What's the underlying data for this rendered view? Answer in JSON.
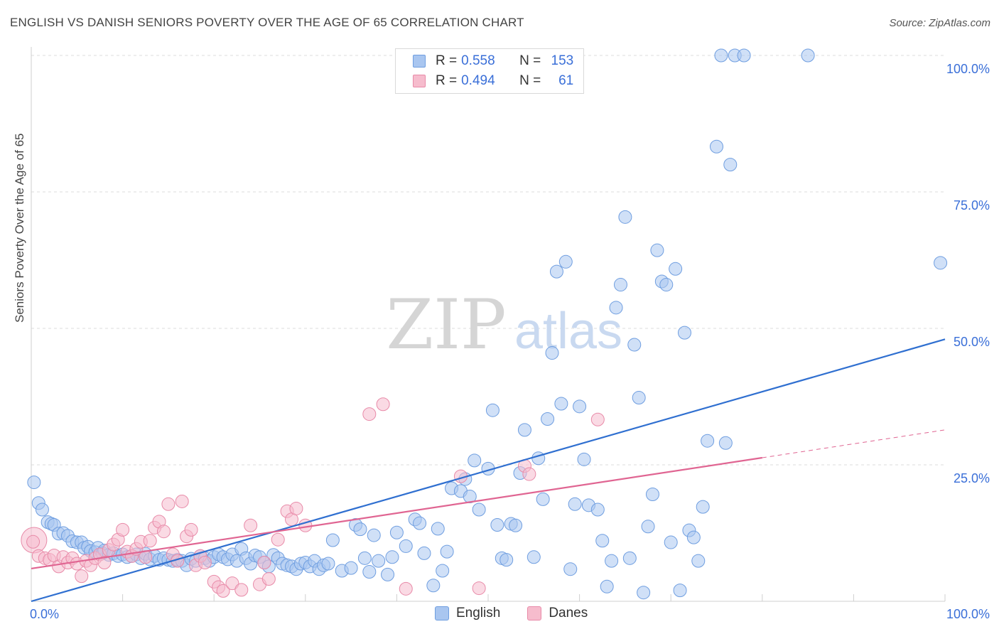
{
  "title": "ENGLISH VS DANISH SENIORS POVERTY OVER THE AGE OF 65 CORRELATION CHART",
  "source": "Source: ZipAtlas.com",
  "watermark": {
    "zip": "ZIP",
    "atlas": "atlas"
  },
  "colors": {
    "english_fill": "#a9c6f0",
    "english_stroke": "#6f9ee0",
    "english_line": "#2f6fd0",
    "danes_fill": "#f6bccd",
    "danes_stroke": "#e88aa8",
    "danes_line": "#e06592",
    "tick_text": "#3a6fd8",
    "grid": "#dcdcdc"
  },
  "legend_top": {
    "english": {
      "r_label": "R =",
      "r_value": "0.558",
      "n_label": "N =",
      "n_value": "153"
    },
    "danes": {
      "r_label": "R =",
      "r_value": "0.494",
      "n_label": "N =",
      "n_value": "61"
    }
  },
  "chart_data": {
    "type": "scatter",
    "title": "ENGLISH VS DANISH SENIORS POVERTY OVER THE AGE OF 65 CORRELATION CHART",
    "xlabel": "",
    "ylabel": "Seniors Poverty Over the Age of 65",
    "xlim": [
      0,
      100
    ],
    "ylim": [
      0,
      100
    ],
    "x_tick_labels": [
      "0.0%",
      "100.0%"
    ],
    "y_tick_labels": [
      "25.0%",
      "50.0%",
      "75.0%",
      "100.0%"
    ],
    "y_ticks": [
      25,
      50,
      75,
      100
    ],
    "grid": true,
    "legend": "top-center",
    "series": [
      {
        "name": "English",
        "trendline": {
          "x": [
            0,
            100
          ],
          "y": [
            0,
            48
          ]
        },
        "points": [
          [
            0.3,
            21.8
          ],
          [
            0.8,
            18
          ],
          [
            1.2,
            16.8
          ],
          [
            1.8,
            14.5
          ],
          [
            2.2,
            14.2
          ],
          [
            2.5,
            14
          ],
          [
            3,
            12.4
          ],
          [
            3.5,
            12.5
          ],
          [
            4,
            12
          ],
          [
            4.5,
            11
          ],
          [
            5,
            10.8
          ],
          [
            5.5,
            10.8
          ],
          [
            5.8,
            9.8
          ],
          [
            6.2,
            10
          ],
          [
            6.5,
            9.2
          ],
          [
            7,
            9
          ],
          [
            7.3,
            9.8
          ],
          [
            7.8,
            8.8
          ],
          [
            8,
            9.3
          ],
          [
            8.5,
            8.5
          ],
          [
            9,
            8.8
          ],
          [
            9.5,
            8.3
          ],
          [
            10,
            8.6
          ],
          [
            10.5,
            8.1
          ],
          [
            11,
            8.3
          ],
          [
            11.5,
            8.6
          ],
          [
            12,
            7.9
          ],
          [
            12.5,
            8.7
          ],
          [
            13,
            7.7
          ],
          [
            13.5,
            8.3
          ],
          [
            14,
            7.6
          ],
          [
            14.5,
            7.9
          ],
          [
            15,
            7.6
          ],
          [
            15.5,
            7.4
          ],
          [
            16,
            7.6
          ],
          [
            16.5,
            7.4
          ],
          [
            17,
            6.6
          ],
          [
            17.5,
            7.8
          ],
          [
            18,
            7.4
          ],
          [
            18.5,
            8.3
          ],
          [
            19,
            7.9
          ],
          [
            19.5,
            7.4
          ],
          [
            20,
            8.1
          ],
          [
            20.5,
            8.6
          ],
          [
            21,
            8.1
          ],
          [
            21.5,
            7.7
          ],
          [
            22,
            8.6
          ],
          [
            22.5,
            7.4
          ],
          [
            23,
            9.6
          ],
          [
            23.5,
            7.9
          ],
          [
            24,
            6.9
          ],
          [
            24.5,
            8.4
          ],
          [
            25,
            8.1
          ],
          [
            25.5,
            7.1
          ],
          [
            26,
            6.4
          ],
          [
            26.5,
            8.5
          ],
          [
            27,
            7.9
          ],
          [
            27.5,
            6.9
          ],
          [
            28,
            6.6
          ],
          [
            28.5,
            6.4
          ],
          [
            29,
            5.9
          ],
          [
            29.5,
            6.9
          ],
          [
            30,
            7.1
          ],
          [
            30.5,
            6.4
          ],
          [
            31,
            7.4
          ],
          [
            31.5,
            5.9
          ],
          [
            32,
            6.6
          ],
          [
            32.5,
            6.9
          ],
          [
            33,
            11.2
          ],
          [
            34,
            5.6
          ],
          [
            35,
            6.1
          ],
          [
            35.5,
            14
          ],
          [
            36,
            13.2
          ],
          [
            36.5,
            7.9
          ],
          [
            37,
            5.4
          ],
          [
            37.5,
            12.1
          ],
          [
            38,
            7.4
          ],
          [
            39,
            4.9
          ],
          [
            39.5,
            8.1
          ],
          [
            40,
            12.6
          ],
          [
            41,
            10.1
          ],
          [
            42,
            15
          ],
          [
            42.5,
            14.3
          ],
          [
            43,
            8.8
          ],
          [
            44,
            2.9
          ],
          [
            44.5,
            13.3
          ],
          [
            45,
            5.6
          ],
          [
            45.5,
            9.1
          ],
          [
            46,
            20.7
          ],
          [
            47,
            20.2
          ],
          [
            47.5,
            22.4
          ],
          [
            48,
            19.2
          ],
          [
            48.5,
            25.8
          ],
          [
            49,
            16.8
          ],
          [
            50,
            24.3
          ],
          [
            50.5,
            35
          ],
          [
            51,
            14
          ],
          [
            51.5,
            7.9
          ],
          [
            52,
            7.6
          ],
          [
            52.5,
            14.2
          ],
          [
            53,
            13.9
          ],
          [
            53.5,
            23.5
          ],
          [
            54,
            31.4
          ],
          [
            55,
            8.1
          ],
          [
            55.5,
            26.2
          ],
          [
            56,
            18.7
          ],
          [
            56.5,
            33.4
          ],
          [
            57,
            45.5
          ],
          [
            57.5,
            60.4
          ],
          [
            58,
            36.2
          ],
          [
            58.5,
            62.2
          ],
          [
            59,
            5.9
          ],
          [
            59.5,
            17.8
          ],
          [
            60,
            35.7
          ],
          [
            60.5,
            26
          ],
          [
            61,
            17.6
          ],
          [
            62,
            16.8
          ],
          [
            62.5,
            11.1
          ],
          [
            63,
            2.7
          ],
          [
            63.5,
            7.4
          ],
          [
            64,
            53.8
          ],
          [
            64.5,
            58
          ],
          [
            65,
            70.4
          ],
          [
            65.5,
            7.9
          ],
          [
            66,
            47
          ],
          [
            66.5,
            37.3
          ],
          [
            67,
            1.6
          ],
          [
            67.5,
            13.7
          ],
          [
            68,
            19.6
          ],
          [
            68.5,
            64.3
          ],
          [
            69,
            58.6
          ],
          [
            69.5,
            58
          ],
          [
            70,
            10.8
          ],
          [
            70.5,
            60.9
          ],
          [
            71,
            2
          ],
          [
            71.5,
            49.2
          ],
          [
            72,
            13
          ],
          [
            72.5,
            11.7
          ],
          [
            73,
            7.4
          ],
          [
            73.5,
            17.3
          ],
          [
            74,
            29.4
          ],
          [
            75,
            83.3
          ],
          [
            75.5,
            100
          ],
          [
            76,
            29
          ],
          [
            76.5,
            80
          ],
          [
            77,
            100
          ],
          [
            78,
            100
          ],
          [
            85,
            100
          ],
          [
            99.5,
            62
          ]
        ]
      },
      {
        "name": "Danes",
        "trendline": {
          "x": [
            0,
            80
          ],
          "y": [
            6,
            26.3
          ]
        },
        "trendline_dashed": {
          "x": [
            80,
            100
          ],
          "y": [
            26.3,
            31.4
          ]
        },
        "points": [
          [
            0.3,
            11.2
          ],
          [
            0.8,
            8.3
          ],
          [
            1.5,
            7.9
          ],
          [
            2,
            7.6
          ],
          [
            2.5,
            8.4
          ],
          [
            3,
            6.4
          ],
          [
            3.5,
            8.1
          ],
          [
            4,
            7.1
          ],
          [
            4.5,
            7.9
          ],
          [
            5,
            6.9
          ],
          [
            5.5,
            4.6
          ],
          [
            6,
            7.4
          ],
          [
            6.5,
            6.6
          ],
          [
            7,
            7.9
          ],
          [
            7.5,
            8.6
          ],
          [
            8,
            7.1
          ],
          [
            8.5,
            9.4
          ],
          [
            9,
            10.4
          ],
          [
            9.5,
            11.3
          ],
          [
            10,
            13.1
          ],
          [
            10.5,
            9.1
          ],
          [
            11,
            8.3
          ],
          [
            11.5,
            9.6
          ],
          [
            12,
            10.9
          ],
          [
            12.5,
            8.1
          ],
          [
            13,
            11.1
          ],
          [
            13.5,
            13.5
          ],
          [
            14,
            14.6
          ],
          [
            14.5,
            12.8
          ],
          [
            15,
            17.8
          ],
          [
            15.5,
            8.6
          ],
          [
            16,
            7.4
          ],
          [
            16.5,
            18.3
          ],
          [
            17,
            11.9
          ],
          [
            17.5,
            13.1
          ],
          [
            18,
            6.6
          ],
          [
            18.5,
            8.3
          ],
          [
            19,
            7.1
          ],
          [
            20,
            3.6
          ],
          [
            20.5,
            2.6
          ],
          [
            21,
            1.9
          ],
          [
            22,
            3.3
          ],
          [
            23,
            2.1
          ],
          [
            24,
            13.9
          ],
          [
            25,
            3.1
          ],
          [
            25.5,
            7.1
          ],
          [
            26,
            4.1
          ],
          [
            27,
            11.3
          ],
          [
            28,
            16.5
          ],
          [
            28.5,
            15
          ],
          [
            29,
            17
          ],
          [
            30,
            13.9
          ],
          [
            37,
            34.3
          ],
          [
            38.5,
            36.1
          ],
          [
            41,
            2.3
          ],
          [
            47,
            22.9
          ],
          [
            49,
            2.4
          ],
          [
            54,
            24.8
          ],
          [
            54.5,
            23.3
          ],
          [
            62,
            33.3
          ],
          [
            0.2,
            10.9
          ]
        ]
      }
    ]
  }
}
